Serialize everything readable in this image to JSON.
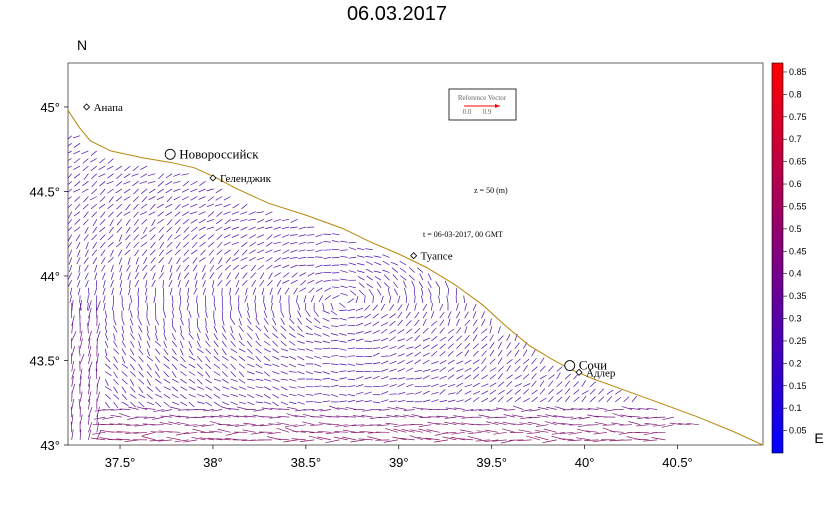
{
  "title": "06.03.2017",
  "north_label": "N",
  "east_label": "E",
  "lon_ticks": [
    {
      "lon": 37.5,
      "label": "37.5°"
    },
    {
      "lon": 38.0,
      "label": "38°"
    },
    {
      "lon": 38.5,
      "label": "38.5°"
    },
    {
      "lon": 39.0,
      "label": "39°"
    },
    {
      "lon": 39.5,
      "label": "39.5°"
    },
    {
      "lon": 40.0,
      "label": "40°"
    },
    {
      "lon": 40.5,
      "label": "40.5°"
    }
  ],
  "lat_ticks": [
    {
      "lat": 45.0,
      "label": "45°"
    },
    {
      "lat": 44.5,
      "label": "44.5°"
    },
    {
      "lat": 44.0,
      "label": "44°"
    },
    {
      "lat": 43.5,
      "label": "43.5°"
    },
    {
      "lat": 43.0,
      "label": "43°"
    }
  ],
  "cities": [
    {
      "name": "Анапа",
      "lon": 37.32,
      "lat": 45.0,
      "marker": "diamond",
      "size": "small"
    },
    {
      "name": "Новороссийск",
      "lon": 37.77,
      "lat": 44.72,
      "marker": "circle",
      "size": "big"
    },
    {
      "name": "Геленджик",
      "lon": 38.0,
      "lat": 44.58,
      "marker": "diamond",
      "size": "small"
    },
    {
      "name": "Туапсе",
      "lon": 39.08,
      "lat": 44.12,
      "marker": "diamond",
      "size": "small"
    },
    {
      "name": "Сочи",
      "lon": 39.92,
      "lat": 43.47,
      "marker": "circle",
      "size": "big"
    },
    {
      "name": "Адлер",
      "lon": 39.97,
      "lat": 43.43,
      "marker": "diamond",
      "size": "small"
    }
  ],
  "annotations": {
    "depth": "z = 50 (m)",
    "time": "t = 06-03-2017,  00 GMT"
  },
  "reference_vector": {
    "title": "Reference Vector",
    "min_label": "0.0",
    "max_label": "0.9",
    "color": "#ff0000"
  },
  "colorbar": {
    "ticks": [
      "0.85",
      "0.8",
      "0.75",
      "0.7",
      "0.65",
      "0.6",
      "0.55",
      "0.5",
      "0.45",
      "0.4",
      "0.35",
      "0.3",
      "0.25",
      "0.2",
      "0.15",
      "0.1",
      "0.05"
    ],
    "max": 0.85,
    "top_color": "#ff0000",
    "bottom_color": "#0000ff"
  },
  "colors": {
    "coast": "#b8860b",
    "frame": "#000000",
    "arrows_low": "#2a10d0",
    "arrows_high": "#8a1466"
  }
}
